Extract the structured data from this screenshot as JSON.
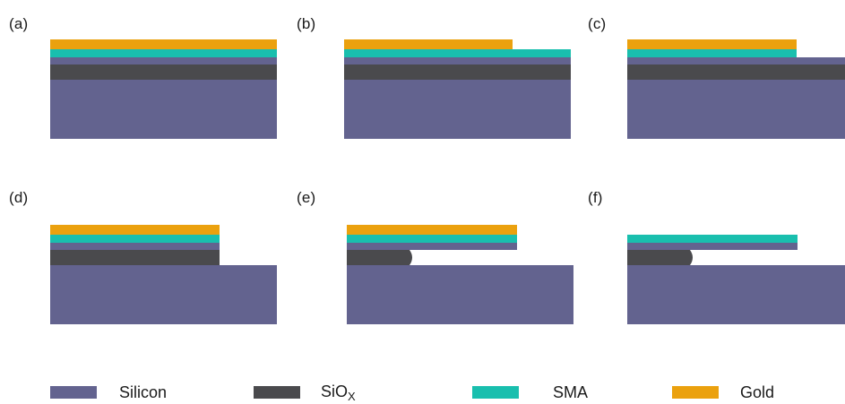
{
  "colors": {
    "silicon": "#63638f",
    "siox": "#4a4a4d",
    "sma": "#19bfae",
    "gold": "#eba10e"
  },
  "panels": {
    "a": "(a)",
    "b": "(b)",
    "c": "(c)",
    "d": "(d)",
    "e": "(e)",
    "f": "(f)"
  },
  "legend": {
    "silicon": "Silicon",
    "siox_base": "SiO",
    "siox_sub": "X",
    "sma": "SMA",
    "gold": "Gold"
  }
}
